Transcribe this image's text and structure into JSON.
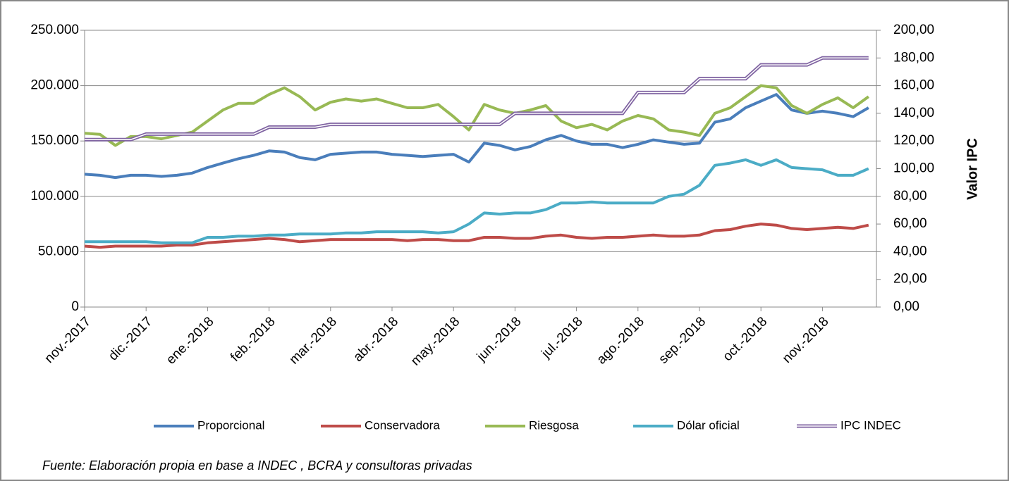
{
  "chart_data": {
    "type": "line",
    "categories": [
      "nov.-2017",
      null,
      null,
      null,
      "dic.-2017",
      null,
      null,
      null,
      "ene.-2018",
      null,
      null,
      null,
      "feb.-2018",
      null,
      null,
      null,
      "mar.-2018",
      null,
      null,
      null,
      "abr.-2018",
      null,
      null,
      null,
      "may.-2018",
      null,
      null,
      null,
      "jun.-2018",
      null,
      null,
      null,
      "jul.-2018",
      null,
      null,
      null,
      "ago.-2018",
      null,
      null,
      null,
      "sep.-2018",
      null,
      null,
      null,
      "oct.-2018",
      null,
      null,
      null,
      "nov.-2018",
      null,
      null,
      null
    ],
    "series": [
      {
        "name": "Proporcional",
        "color": "#4a7ebb",
        "values": [
          120000,
          119000,
          117000,
          119000,
          119000,
          118000,
          119000,
          121000,
          126000,
          130000,
          134000,
          137000,
          141000,
          140000,
          135000,
          133000,
          138000,
          139000,
          140000,
          140000,
          138000,
          137000,
          136000,
          137000,
          138000,
          131000,
          148000,
          146000,
          142000,
          145000,
          151000,
          155000,
          150000,
          147000,
          147000,
          144000,
          147000,
          151000,
          149000,
          147000,
          148000,
          167000,
          170000,
          180000,
          186000,
          192000,
          178000,
          175000,
          177000,
          175000,
          172000,
          180000
        ]
      },
      {
        "name": "Conservadora",
        "color": "#be4b48",
        "values": [
          55000,
          54000,
          55000,
          55000,
          55000,
          55000,
          56000,
          56000,
          58000,
          59000,
          60000,
          61000,
          62000,
          61000,
          59000,
          60000,
          61000,
          61000,
          61000,
          61000,
          61000,
          60000,
          61000,
          61000,
          60000,
          60000,
          63000,
          63000,
          62000,
          62000,
          64000,
          65000,
          63000,
          62000,
          63000,
          63000,
          64000,
          65000,
          64000,
          64000,
          65000,
          69000,
          70000,
          73000,
          75000,
          74000,
          71000,
          70000,
          71000,
          72000,
          71000,
          74000
        ]
      },
      {
        "name": "Riesgosa",
        "color": "#98b954",
        "values": [
          157000,
          156000,
          146000,
          154000,
          154000,
          152000,
          155000,
          158000,
          168000,
          178000,
          184000,
          184000,
          192000,
          198000,
          190000,
          178000,
          185000,
          188000,
          186000,
          188000,
          184000,
          180000,
          180000,
          183000,
          172000,
          160000,
          183000,
          178000,
          175000,
          178000,
          182000,
          168000,
          162000,
          165000,
          160000,
          168000,
          173000,
          170000,
          160000,
          158000,
          155000,
          175000,
          180000,
          190000,
          200000,
          198000,
          182000,
          175000,
          183000,
          189000,
          180000,
          190000
        ]
      },
      {
        "name": "Dólar oficial",
        "color": "#4bacc6",
        "values": [
          59000,
          59000,
          59000,
          59000,
          59000,
          58000,
          58000,
          58000,
          63000,
          63000,
          64000,
          64000,
          65000,
          65000,
          66000,
          66000,
          66000,
          67000,
          67000,
          68000,
          68000,
          68000,
          68000,
          67000,
          68000,
          75000,
          85000,
          84000,
          85000,
          85000,
          88000,
          94000,
          94000,
          95000,
          94000,
          94000,
          94000,
          94000,
          100000,
          102000,
          110000,
          128000,
          130000,
          133000,
          128000,
          133000,
          126000,
          125000,
          124000,
          119000,
          119000,
          125000
        ]
      },
      {
        "name": "IPC INDEC",
        "color": "#8064a2",
        "axis": "y2",
        "values": [
          121,
          121,
          121,
          121,
          125,
          125,
          125,
          125,
          125,
          125,
          125,
          125,
          130,
          130,
          130,
          130,
          132,
          132,
          132,
          132,
          132,
          132,
          132,
          132,
          132,
          132,
          132,
          132,
          140,
          140,
          140,
          140,
          140,
          140,
          140,
          140,
          155,
          155,
          155,
          155,
          165,
          165,
          165,
          165,
          175,
          175,
          175,
          175,
          180,
          180,
          180,
          180
        ]
      }
    ],
    "ylim": [
      0,
      250000
    ],
    "yticks": [
      {
        "value": 0,
        "label": "0"
      },
      {
        "value": 50000,
        "label": "50.000"
      },
      {
        "value": 100000,
        "label": "100.000"
      },
      {
        "value": 150000,
        "label": "150.000"
      },
      {
        "value": 200000,
        "label": "200.000"
      },
      {
        "value": 250000,
        "label": "250.000"
      }
    ],
    "y2lim": [
      0,
      200
    ],
    "y2ticks": [
      {
        "value": 0,
        "label": "0,00"
      },
      {
        "value": 20,
        "label": "20,00"
      },
      {
        "value": 40,
        "label": "40,00"
      },
      {
        "value": 60,
        "label": "60,00"
      },
      {
        "value": 80,
        "label": "80,00"
      },
      {
        "value": 100,
        "label": "100,00"
      },
      {
        "value": 120,
        "label": "120,00"
      },
      {
        "value": 140,
        "label": "140,00"
      },
      {
        "value": 160,
        "label": "160,00"
      },
      {
        "value": 180,
        "label": "180,00"
      },
      {
        "value": 200,
        "label": "200,00"
      }
    ],
    "y2label": "Valor IPC",
    "grid": true,
    "legend": "bottom",
    "note": "Fuente: Elaboración propia en base a INDEC , BCRA y consultoras privadas"
  }
}
